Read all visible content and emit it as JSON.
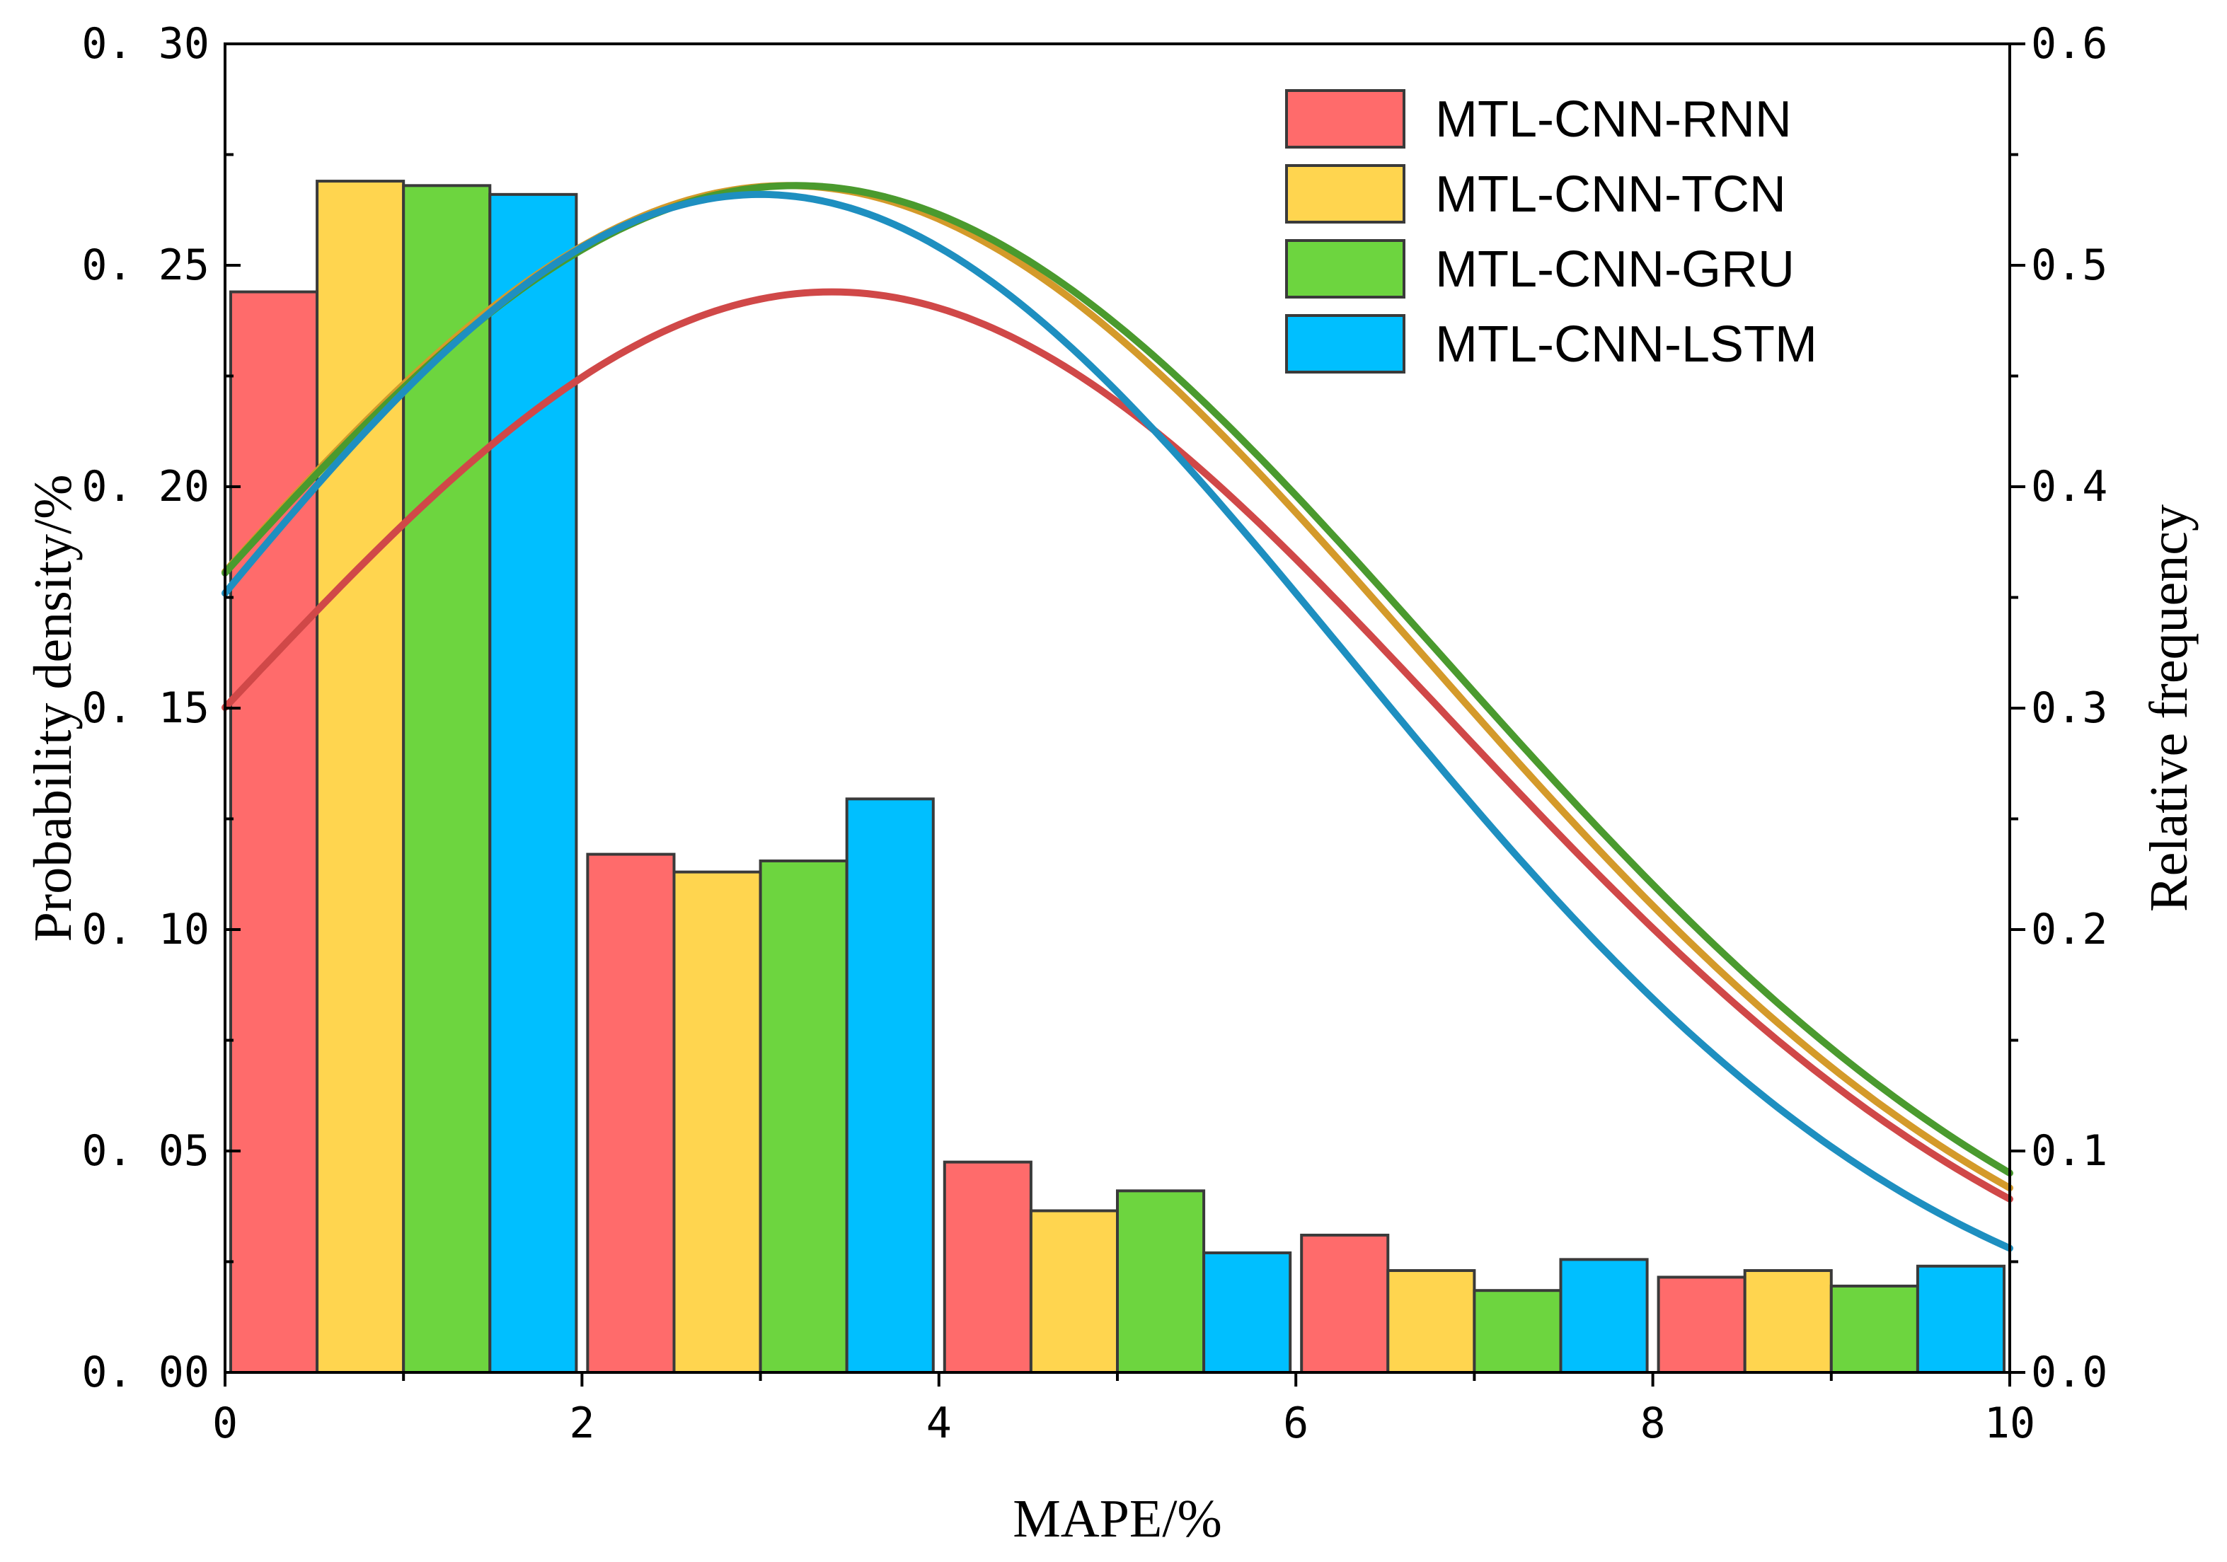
{
  "chart_data": {
    "type": "bar",
    "xlabel": "MAPE/%",
    "ylabel": "Probability density/%",
    "ylabel_right": "Relative frequency",
    "xlim": [
      0,
      10
    ],
    "ylim": [
      0,
      0.3
    ],
    "ylim_right": [
      0,
      0.6
    ],
    "x_ticks": [
      {
        "value": 0,
        "label": "0"
      },
      {
        "value": 2,
        "label": "2"
      },
      {
        "value": 4,
        "label": "4"
      },
      {
        "value": 6,
        "label": "6"
      },
      {
        "value": 8,
        "label": "8"
      },
      {
        "value": 10,
        "label": "10"
      }
    ],
    "y_ticks": [
      {
        "value": 0.0,
        "label": "0. 00"
      },
      {
        "value": 0.05,
        "label": "0. 05"
      },
      {
        "value": 0.1,
        "label": "0. 10"
      },
      {
        "value": 0.15,
        "label": "0. 15"
      },
      {
        "value": 0.2,
        "label": "0. 20"
      },
      {
        "value": 0.25,
        "label": "0. 25"
      },
      {
        "value": 0.3,
        "label": "0. 30"
      }
    ],
    "y_ticks_right": [
      {
        "value": 0.0,
        "label": "0.0"
      },
      {
        "value": 0.1,
        "label": "0.1"
      },
      {
        "value": 0.2,
        "label": "0.2"
      },
      {
        "value": 0.3,
        "label": "0.3"
      },
      {
        "value": 0.4,
        "label": "0.4"
      },
      {
        "value": 0.5,
        "label": "0.5"
      },
      {
        "value": 0.6,
        "label": "0.6"
      }
    ],
    "bins": [
      [
        0,
        2
      ],
      [
        2,
        4
      ],
      [
        4,
        6
      ],
      [
        6,
        8
      ],
      [
        8,
        10
      ]
    ],
    "legend_position": "top-right",
    "series": [
      {
        "name": "MTL-CNN-RNN",
        "color": "#ff6b6b",
        "line_color": "#d04848",
        "values": [
          0.244,
          0.117,
          0.0475,
          0.031,
          0.0215
        ],
        "curve": {
          "mu": 3.4,
          "sigma": 3.45,
          "peak": 0.244
        }
      },
      {
        "name": "MTL-CNN-TCN",
        "color": "#ffd54f",
        "line_color": "#d49a2a",
        "values": [
          0.269,
          0.113,
          0.0365,
          0.023,
          0.023
        ],
        "curve": {
          "mu": 3.15,
          "sigma": 3.55,
          "peak": 0.268
        }
      },
      {
        "name": "MTL-CNN-GRU",
        "color": "#6dd53f",
        "line_color": "#4a9a2e",
        "values": [
          0.268,
          0.1155,
          0.041,
          0.0185,
          0.0195
        ],
        "curve": {
          "mu": 3.2,
          "sigma": 3.6,
          "peak": 0.268
        }
      },
      {
        "name": "MTL-CNN-LSTM",
        "color": "#00bfff",
        "line_color": "#1e8fc0",
        "values": [
          0.266,
          0.1295,
          0.027,
          0.0255,
          0.024
        ],
        "curve": {
          "mu": 3.0,
          "sigma": 3.3,
          "peak": 0.266
        }
      }
    ]
  }
}
